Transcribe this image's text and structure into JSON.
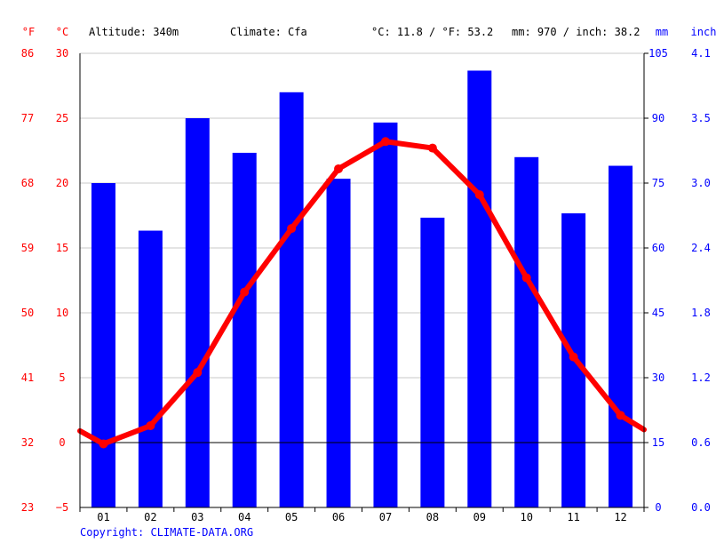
{
  "header": {
    "unit_f": "°F",
    "unit_c": "°C",
    "altitude": "Altitude: 340m",
    "climate": "Climate: Cfa",
    "temp_avg": "°C: 11.8 / °F: 53.2",
    "precip_avg": "mm: 970 / inch: 38.2",
    "unit_mm": "mm",
    "unit_inch": "inch"
  },
  "footer": {
    "copyright": "Copyright: CLIMATE-DATA.ORG"
  },
  "colors": {
    "temperature": "#ff0000",
    "precipitation": "#0000ff",
    "grid": "#c8c8c8",
    "zero_line": "#000000"
  },
  "chart_data": {
    "type": "bar",
    "categories": [
      "01",
      "02",
      "03",
      "04",
      "05",
      "06",
      "07",
      "08",
      "09",
      "10",
      "11",
      "12"
    ],
    "series": [
      {
        "kind": "bar",
        "axis": "right",
        "values": [
          75,
          64,
          90,
          82,
          96,
          76,
          89,
          67,
          101,
          81,
          68,
          79
        ]
      },
      {
        "kind": "line",
        "axis": "left",
        "values": [
          -0.1,
          1.3,
          5.4,
          11.6,
          16.5,
          21.1,
          23.2,
          22.7,
          19.1,
          12.7,
          6.6,
          2.1
        ]
      }
    ],
    "line_edge_values": {
      "start": 0.9,
      "end": 1.0
    },
    "axes": {
      "left_c": {
        "min": -5,
        "max": 30,
        "ticks": [
          "−5",
          "0",
          "5",
          "10",
          "15",
          "20",
          "25",
          "30"
        ]
      },
      "left_f": {
        "ticks": [
          "23",
          "32",
          "41",
          "50",
          "59",
          "68",
          "77",
          "86"
        ]
      },
      "right_mm": {
        "min": 0,
        "max": 105,
        "ticks": [
          "0",
          "15",
          "30",
          "45",
          "60",
          "75",
          "90",
          "105"
        ]
      },
      "right_inch": {
        "ticks": [
          "0.0",
          "0.6",
          "1.2",
          "1.8",
          "2.4",
          "3.0",
          "3.5",
          "4.1"
        ]
      }
    },
    "grid": true
  }
}
